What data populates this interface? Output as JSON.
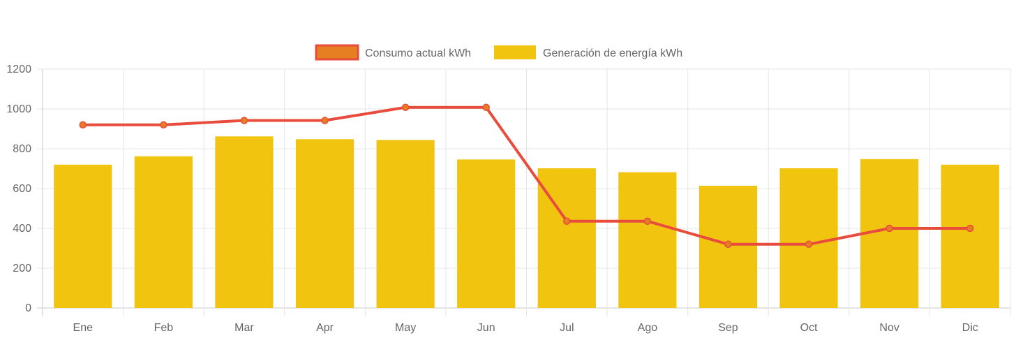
{
  "chart_data": {
    "type": "bar",
    "categories": [
      "Ene",
      "Feb",
      "Mar",
      "Apr",
      "May",
      "Jun",
      "Jul",
      "Ago",
      "Sep",
      "Oct",
      "Nov",
      "Dic"
    ],
    "ylim": [
      0,
      1200
    ],
    "yticks": [
      "0",
      "200",
      "400",
      "600",
      "800",
      "1000",
      "1200"
    ],
    "series": [
      {
        "name": "Consumo actual kWh",
        "type": "line",
        "color": "#e74c3c",
        "point_color": "#e67e22",
        "values": [
          920,
          920,
          942,
          942,
          1008,
          1008,
          436,
          436,
          320,
          320,
          400,
          400
        ]
      },
      {
        "name": "Generación de energía kWh",
        "type": "bar",
        "color": "#f1c40f",
        "values": [
          720,
          762,
          862,
          848,
          844,
          746,
          702,
          682,
          614,
          702,
          748,
          720
        ]
      }
    ],
    "legend_position": "top-center",
    "grid": true
  }
}
